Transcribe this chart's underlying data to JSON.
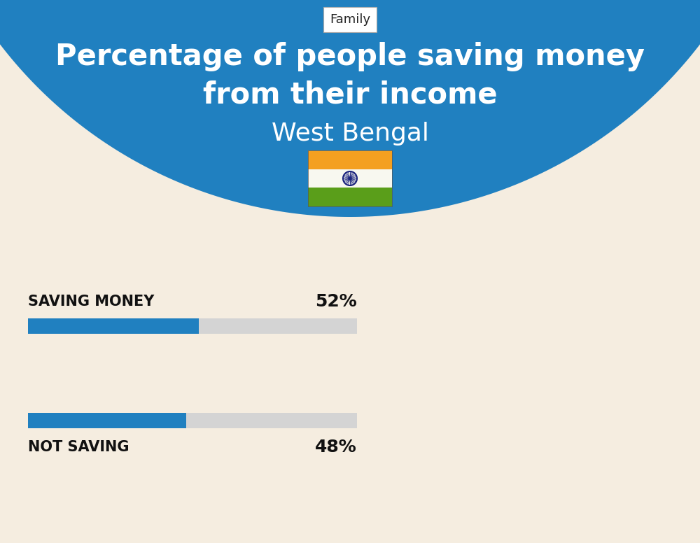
{
  "title_line1": "Percentage of people saving money",
  "title_line2": "from their income",
  "subtitle": "West Bengal",
  "category_label": "Family",
  "bg_top_color": "#2080C0",
  "bg_bottom_color": "#F5EDE0",
  "bar_color": "#2080C0",
  "bar_bg_color": "#D4D4D4",
  "categories": [
    "SAVING MONEY",
    "NOT SAVING"
  ],
  "values": [
    52,
    48
  ],
  "bar_max": 100,
  "title_color": "#FFFFFF",
  "subtitle_color": "#FFFFFF",
  "label_color": "#111111",
  "value_color": "#111111",
  "title_fontsize": 30,
  "subtitle_fontsize": 26,
  "label_fontsize": 15,
  "value_fontsize": 18,
  "category_label_fontsize": 13,
  "flag_saffron": "#F4A020",
  "flag_white": "#F8F8F0",
  "flag_green": "#5A9E1A",
  "flag_wheel": "#1A237E"
}
